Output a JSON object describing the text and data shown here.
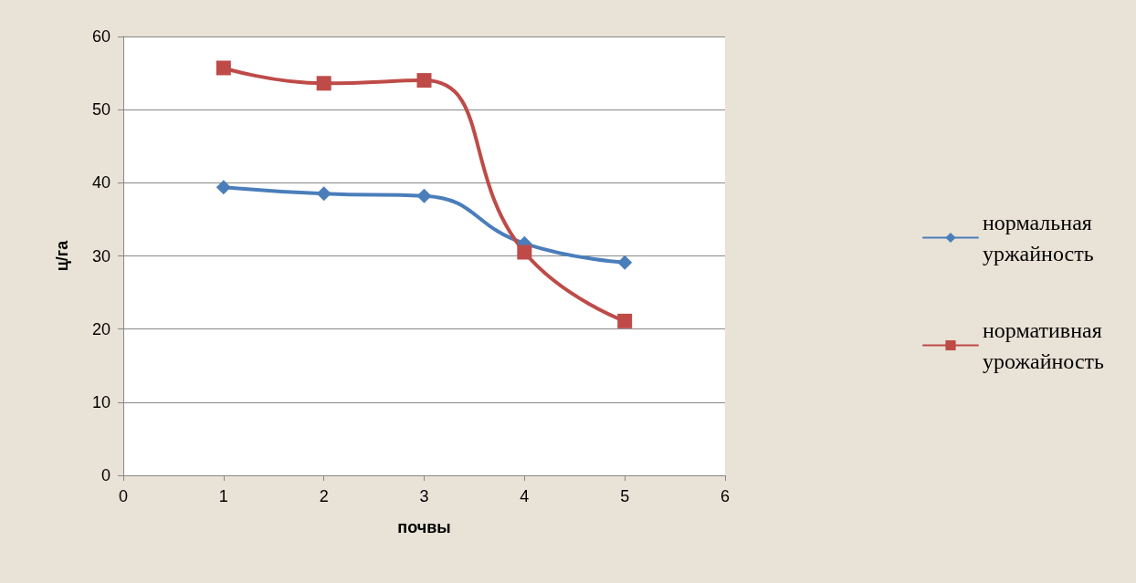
{
  "chart_data": {
    "type": "line",
    "xlabel": "почвы",
    "ylabel": "ц/га",
    "x": [
      1,
      2,
      3,
      4,
      5
    ],
    "series": [
      {
        "name": "нормальная уржайность",
        "color": "#4a7ebb",
        "marker": "diamond",
        "values": [
          39.4,
          38.5,
          38.2,
          31.7,
          29.1
        ]
      },
      {
        "name": "нормативная урожайность",
        "color": "#be4b48",
        "marker": "square",
        "values": [
          55.7,
          53.6,
          54.0,
          30.5,
          21.1
        ]
      }
    ],
    "xlim": [
      0,
      6
    ],
    "xticks": [
      0,
      1,
      2,
      3,
      4,
      5,
      6
    ],
    "ylim": [
      0,
      60
    ],
    "yticks": [
      0,
      10,
      20,
      30,
      40,
      50,
      60
    ],
    "grid": "y",
    "legend": "right",
    "line_style": "solid"
  }
}
